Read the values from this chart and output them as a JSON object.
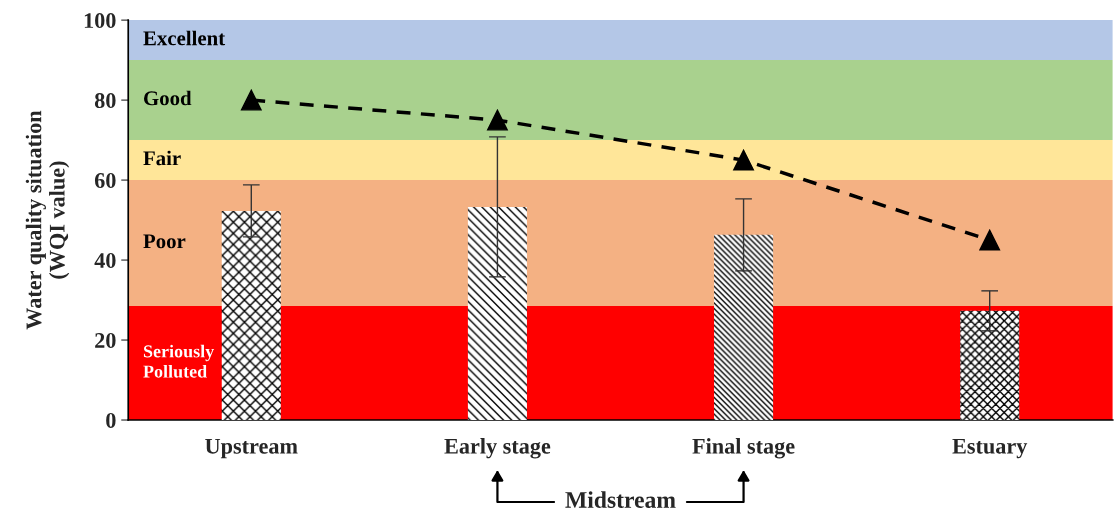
{
  "chart_data": {
    "type": "bar",
    "ylabel": "Water quality situation\n(WQI value)",
    "categories": [
      "Upstream",
      "Early stage",
      "Final stage",
      "Estuary"
    ],
    "series": [
      {
        "color": "#ffffff",
        "values": [
          52.3,
          53.3,
          46.3,
          27.3
        ],
        "errors": [
          6.5,
          17.5,
          9,
          5
        ]
      },
      {
        "type": "line",
        "color": "#000000",
        "values": [
          80,
          75,
          65,
          45
        ],
        "marker": "triangle",
        "line_style": "dashed"
      }
    ],
    "ylim": [
      0,
      100
    ],
    "yticks": [
      0,
      20,
      40,
      60,
      80,
      100
    ],
    "bands": [
      {
        "axis": "y",
        "from": 90,
        "to": 100,
        "label": "Excellent",
        "color": "#b4c7e7"
      },
      {
        "axis": "y",
        "from": 70,
        "to": 90,
        "label": "Good",
        "color": "#a9d18e"
      },
      {
        "axis": "y",
        "from": 60,
        "to": 70,
        "label": "Fair",
        "color": "#ffe699"
      },
      {
        "axis": "y",
        "from": 28.5,
        "to": 60,
        "label": "Poor",
        "color": "#f4b183"
      },
      {
        "axis": "y",
        "from": 0,
        "to": 28.5,
        "label": "Seriously\nPolluted",
        "color": "#ff0000"
      }
    ],
    "annotations": [
      "Midstream"
    ],
    "grid": false,
    "legend": false
  }
}
